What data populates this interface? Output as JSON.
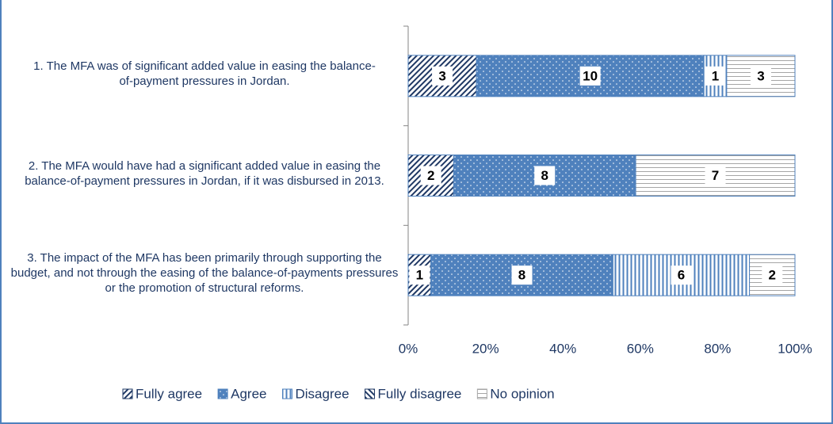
{
  "chart_data": {
    "type": "bar",
    "orientation": "horizontal",
    "stacked": "percent",
    "categories": [
      "1. The MFA was of significant added value in easing the balance-of-payment pressures in Jordan.",
      "2. The MFA would have had a significant added value in easing the balance-of-payment pressures in Jordan, if it was disbursed in 2013.",
      "3. The impact of the MFA has been primarily through supporting the budget, and not through the easing of the balance-of-payments pressures or the promotion of structural reforms."
    ],
    "series": [
      {
        "name": "Fully agree",
        "color": "#1f3864",
        "values": [
          3,
          2,
          1
        ]
      },
      {
        "name": "Agree",
        "color": "#4f81bd",
        "values": [
          10,
          8,
          8
        ]
      },
      {
        "name": "Disagree",
        "color": "#4f81bd",
        "values": [
          1,
          0,
          6
        ]
      },
      {
        "name": "Fully disagree",
        "color": "#1f3864",
        "values": [
          0,
          0,
          0
        ]
      },
      {
        "name": "No opinion",
        "color": "#a6a6a6",
        "values": [
          3,
          7,
          2
        ]
      }
    ],
    "xlim": [
      0,
      100
    ],
    "xticks": [
      {
        "value": 0,
        "label": "0%"
      },
      {
        "value": 20,
        "label": "20%"
      },
      {
        "value": 40,
        "label": "40%"
      },
      {
        "value": 60,
        "label": "60%"
      },
      {
        "value": 80,
        "label": "80%"
      },
      {
        "value": 100,
        "label": "100%"
      }
    ],
    "legend": "bottom"
  }
}
